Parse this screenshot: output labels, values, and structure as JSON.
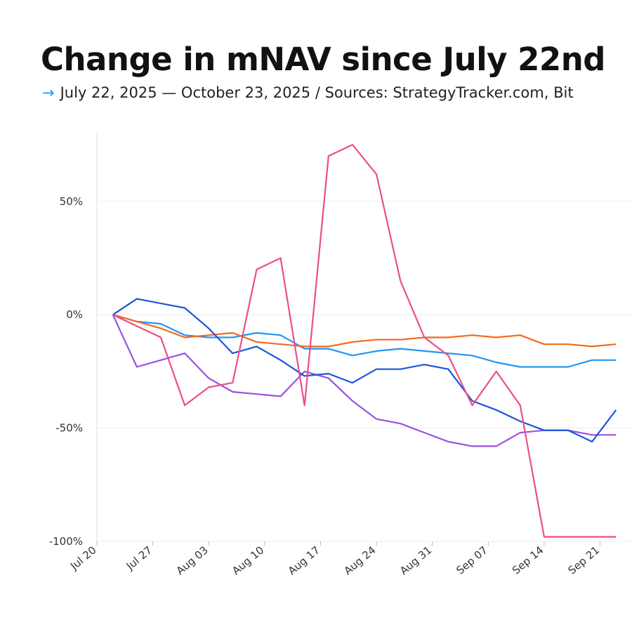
{
  "chart_data": {
    "type": "line",
    "title": "Change in mNAV since July 22nd",
    "subtitle": "July 22, 2025 — October 23, 2025 / Sources: StrategyTracker.com, Bit",
    "x": [
      "Jul 22",
      "Jul 25",
      "Jul 28",
      "Jul 31",
      "Aug 03",
      "Aug 06",
      "Aug 09",
      "Aug 12",
      "Aug 15",
      "Aug 18",
      "Aug 21",
      "Aug 24",
      "Aug 27",
      "Aug 30",
      "Sep 02",
      "Sep 05",
      "Sep 08",
      "Sep 11",
      "Sep 14",
      "Sep 17",
      "Sep 20",
      "Sep 23"
    ],
    "xlim": [
      "Jul 20",
      "Sep 25"
    ],
    "xticks": [
      "Jul 20",
      "Jul 27",
      "Aug 03",
      "Aug 10",
      "Aug 17",
      "Aug 24",
      "Aug 31",
      "Sep 07",
      "Sep 14",
      "Sep 21"
    ],
    "ylim": [
      -100,
      80
    ],
    "yticks": [
      {
        "value": -100,
        "label": "-100%"
      },
      {
        "value": -50,
        "label": "-50%"
      },
      {
        "value": 0,
        "label": "0%"
      },
      {
        "value": 50,
        "label": "50%"
      }
    ],
    "grid": true,
    "series": [
      {
        "color": "#2196f3",
        "values": [
          0,
          -3,
          -4,
          -9,
          -10,
          -10,
          -8,
          -9,
          -15,
          -15,
          -18,
          -16,
          -15,
          -16,
          -17,
          -18,
          -21,
          -23,
          -23,
          -23,
          -20,
          -20
        ]
      },
      {
        "color": "#f26a1b",
        "values": [
          0,
          -3,
          -6,
          -10,
          -9,
          -8,
          -12,
          -13,
          -14,
          -14,
          -12,
          -11,
          -11,
          -10,
          -10,
          -9,
          -10,
          -9,
          -13,
          -13,
          -14,
          -13
        ]
      },
      {
        "color": "#9b51e0",
        "values": [
          0,
          -23,
          -20,
          -17,
          -28,
          -34,
          -35,
          -36,
          -25,
          -28,
          -38,
          -46,
          -48,
          -52,
          -56,
          -58,
          -58,
          -52,
          -51,
          -51,
          -53,
          -53
        ]
      },
      {
        "color": "#1a56db",
        "values": [
          0,
          7,
          5,
          3,
          -6,
          -17,
          -14,
          -20,
          -27,
          -26,
          -30,
          -24,
          -24,
          -22,
          -24,
          -38,
          -42,
          -47,
          -51,
          -51,
          -56,
          -42
        ]
      },
      {
        "color": "#ec4d8c",
        "values": [
          0,
          -5,
          -10,
          -40,
          -32,
          -30,
          20,
          25,
          -40,
          70,
          75,
          62,
          15,
          -10,
          -18,
          -40,
          -25,
          -40,
          -98,
          -98,
          -98,
          -98
        ]
      }
    ]
  }
}
